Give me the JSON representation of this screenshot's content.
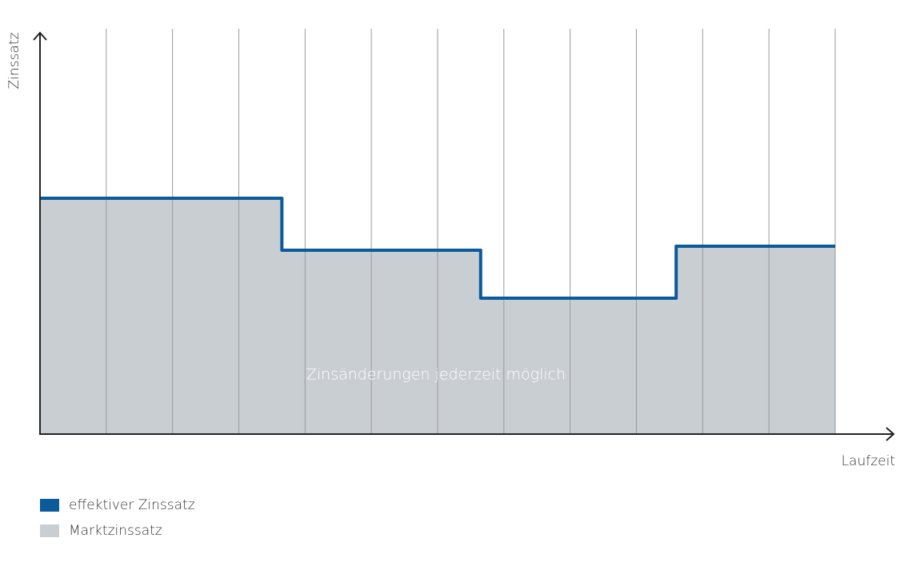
{
  "chart_data": {
    "type": "step",
    "y_label": "Zinssatz",
    "x_label": "Laufzeit",
    "annotation": "Zinsänderungen jederzeit möglich",
    "x": [
      0,
      3.65,
      6.65,
      9.6,
      12
    ],
    "series": [
      {
        "name": "effektiver Zinssatz",
        "color": "#0b5a9b",
        "style": "line",
        "values": [
          5.9,
          4.6,
          3.4,
          4.7,
          4.7
        ]
      },
      {
        "name": "Marktzinssatz",
        "color": "#c9ced3",
        "style": "area",
        "values": [
          5.9,
          4.6,
          3.4,
          4.7,
          4.7
        ]
      }
    ],
    "xlim": [
      0,
      12
    ],
    "ylim": [
      0,
      10
    ],
    "xticks": [
      1,
      2,
      3,
      4,
      5,
      6,
      7,
      8,
      9,
      10,
      11,
      12
    ],
    "grid": true
  }
}
